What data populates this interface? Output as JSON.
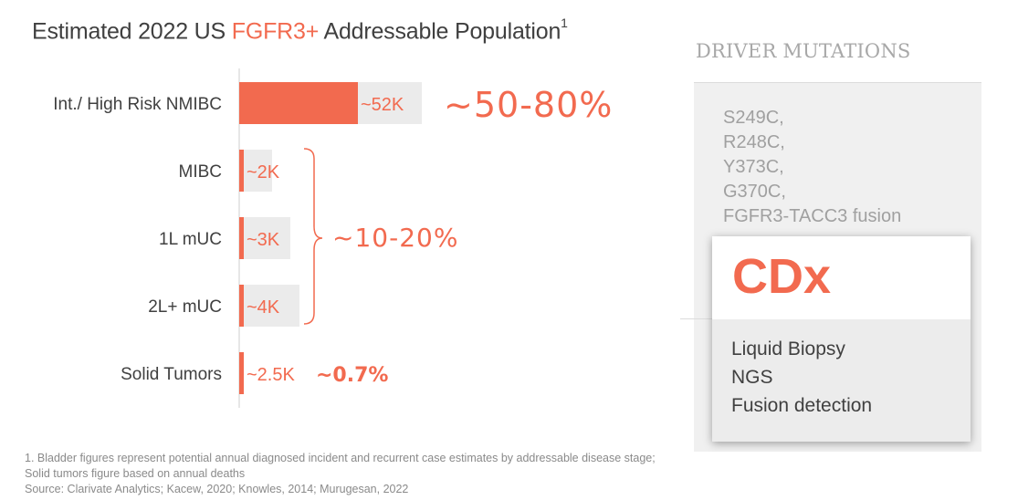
{
  "title": {
    "prefix": "Estimated 2022 US ",
    "highlight": "FGFR3+",
    "suffix": " Addressable Population",
    "superscript": "1"
  },
  "colors": {
    "accent": "#f26a4f",
    "bar_track": "#ebebeb",
    "text_dark": "#404040",
    "text_grey": "#a0a0a0"
  },
  "chart_data": {
    "type": "bar",
    "orientation": "horizontal",
    "categories": [
      "Int./ High Risk NMIBC",
      "MIBC",
      "1L mUC",
      "2L+ mUC",
      "Solid Tumors"
    ],
    "values": [
      52,
      2,
      3,
      4,
      2.5
    ],
    "value_unit": "K",
    "data_labels": [
      "~52K",
      "~2K",
      "~3K",
      "~4K",
      "~2.5K"
    ],
    "highlight_fractions": [
      0.65,
      0.1,
      0.15,
      0.15,
      0.007
    ],
    "annotations": [
      {
        "text": "~50-80%",
        "applies_to": [
          "Int./ High Risk NMIBC"
        ]
      },
      {
        "text": "~10-20%",
        "applies_to": [
          "MIBC",
          "1L mUC",
          "2L+ mUC"
        ]
      },
      {
        "text": "~0.7%",
        "applies_to": [
          "Solid Tumors"
        ]
      }
    ]
  },
  "driver_mutations": {
    "heading": "DRIVER MUTATIONS",
    "items": [
      "S249C,",
      "R248C,",
      "Y373C,",
      "G370C,",
      "FGFR3-TACC3 fusion"
    ]
  },
  "cdx": {
    "title": "CDx",
    "items": [
      "Liquid Biopsy",
      "NGS",
      "Fusion detection"
    ]
  },
  "footnote": {
    "lines": [
      "1. Bladder figures represent potential annual diagnosed incident and recurrent case estimates by addressable disease stage;",
      "Solid tumors figure based on annual deaths",
      "Source: Clarivate Analytics; Kacew, 2020; Knowles, 2014; Murugesan, 2022"
    ]
  }
}
